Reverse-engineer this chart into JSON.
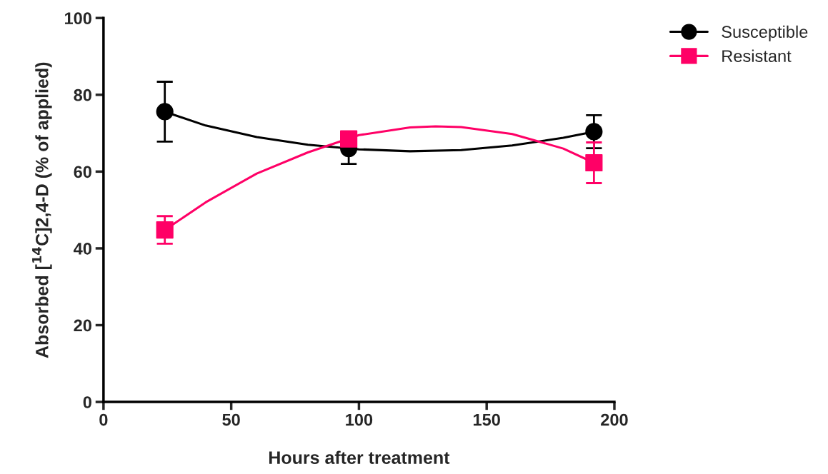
{
  "chart_data": {
    "type": "scatter",
    "xlabel": "Hours after treatment",
    "ylabel": "Absorbed [$^{14}$C]2,4-D (% of applied)",
    "xlim": [
      0,
      200
    ],
    "xticks": [
      0,
      50,
      100,
      150,
      200
    ],
    "ylim": [
      0,
      100
    ],
    "yticks": [
      0,
      20,
      40,
      60,
      80,
      100
    ],
    "grid": false,
    "legend": "top right",
    "series": [
      {
        "name": "Susceptible",
        "marker": "circle",
        "color": "#000000",
        "x": [
          24,
          96,
          192
        ],
        "values": [
          75.6,
          66.0,
          70.4
        ],
        "errors": [
          7.8,
          4.0,
          4.3
        ]
      },
      {
        "name": "Resistant",
        "marker": "square",
        "color": "#ff0066",
        "x": [
          24,
          96,
          192
        ],
        "values": [
          44.8,
          68.5,
          62.3
        ],
        "errors": [
          3.6,
          1.5,
          5.3
        ]
      },
      {
        "type": "line",
        "color": "#000000",
        "x": [
          24,
          40,
          60,
          80,
          100,
          120,
          140,
          160,
          180,
          192
        ],
        "values": [
          75.6,
          72.0,
          69.0,
          67.0,
          65.8,
          65.3,
          65.6,
          66.8,
          68.8,
          70.4
        ]
      },
      {
        "type": "line",
        "color": "#ff0066",
        "x": [
          24,
          40,
          60,
          80,
          100,
          120,
          130,
          140,
          160,
          180,
          192
        ],
        "values": [
          44.8,
          52.0,
          59.5,
          65.0,
          69.5,
          71.5,
          71.8,
          71.6,
          69.8,
          66.0,
          62.3
        ]
      }
    ]
  }
}
